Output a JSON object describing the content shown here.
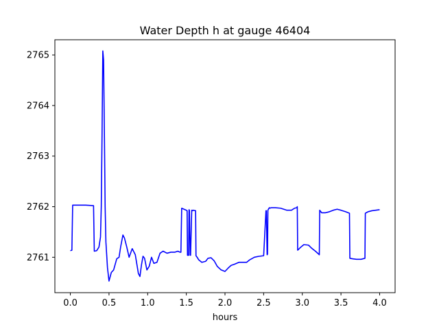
{
  "chart_data": {
    "type": "line",
    "title": "Water Depth h at gauge 46404",
    "xlabel": "hours",
    "ylabel": "",
    "xlim": [
      -0.2,
      4.2
    ],
    "ylim": [
      2760.3,
      2765.3
    ],
    "xticks": [
      0.0,
      0.5,
      1.0,
      1.5,
      2.0,
      2.5,
      3.0,
      3.5,
      4.0
    ],
    "xtick_labels": [
      "0.0",
      "0.5",
      "1.0",
      "1.5",
      "2.0",
      "2.5",
      "3.0",
      "3.5",
      "4.0"
    ],
    "yticks": [
      2761,
      2762,
      2763,
      2764,
      2765
    ],
    "ytick_labels": [
      "2761",
      "2762",
      "2763",
      "2764",
      "2765"
    ],
    "grid": false,
    "series": [
      {
        "color": "#0000ff",
        "x": [
          0.0,
          0.02,
          0.03,
          0.1,
          0.2,
          0.3,
          0.31,
          0.34,
          0.37,
          0.39,
          0.4,
          0.41,
          0.42,
          0.43,
          0.44,
          0.45,
          0.46,
          0.48,
          0.5,
          0.53,
          0.56,
          0.6,
          0.63,
          0.65,
          0.68,
          0.7,
          0.73,
          0.76,
          0.8,
          0.84,
          0.88,
          0.9,
          0.92,
          0.94,
          0.96,
          0.99,
          1.02,
          1.05,
          1.08,
          1.12,
          1.16,
          1.2,
          1.25,
          1.3,
          1.35,
          1.39,
          1.42,
          1.43,
          1.44,
          1.5,
          1.51,
          1.515,
          1.53,
          1.535,
          1.54,
          1.55,
          1.555,
          1.57,
          1.58,
          1.585,
          1.62,
          1.625,
          1.64,
          1.66,
          1.7,
          1.75,
          1.78,
          1.82,
          1.86,
          1.9,
          1.95,
          2.0,
          2.05,
          2.08,
          2.12,
          2.18,
          2.22,
          2.28,
          2.32,
          2.38,
          2.44,
          2.5,
          2.53,
          2.535,
          2.545,
          2.55,
          2.555,
          2.565,
          2.575,
          2.58,
          2.6,
          2.65,
          2.72,
          2.8,
          2.86,
          2.9,
          2.93,
          2.935,
          2.94,
          2.98,
          3.02,
          3.08,
          3.12,
          3.17,
          3.22,
          3.225,
          3.25,
          3.3,
          3.35,
          3.4,
          3.45,
          3.5,
          3.56,
          3.61,
          3.615,
          3.65,
          3.7,
          3.76,
          3.81,
          3.815,
          3.85,
          3.9,
          3.95,
          4.0
        ],
        "y": [
          2761.13,
          2761.14,
          2762.03,
          2762.03,
          2762.03,
          2762.02,
          2761.12,
          2761.13,
          2761.2,
          2761.4,
          2762.0,
          2763.4,
          2765.08,
          2764.9,
          2763.5,
          2762.0,
          2761.3,
          2760.8,
          2760.53,
          2760.7,
          2760.75,
          2760.97,
          2761.0,
          2761.2,
          2761.44,
          2761.38,
          2761.2,
          2761.0,
          2761.17,
          2761.05,
          2760.68,
          2760.62,
          2760.85,
          2761.02,
          2760.98,
          2760.75,
          2760.82,
          2761.0,
          2760.88,
          2760.9,
          2761.08,
          2761.12,
          2761.08,
          2761.1,
          2761.1,
          2761.12,
          2761.1,
          2761.1,
          2761.97,
          2761.93,
          2761.92,
          2761.04,
          2761.04,
          2761.94,
          2761.93,
          2761.04,
          2761.04,
          2761.93,
          2761.92,
          2761.93,
          2761.92,
          2761.03,
          2761.0,
          2760.95,
          2760.9,
          2760.92,
          2760.98,
          2760.99,
          2760.93,
          2760.82,
          2760.75,
          2760.72,
          2760.8,
          2760.84,
          2760.86,
          2760.9,
          2760.9,
          2760.9,
          2760.95,
          2761.0,
          2761.02,
          2761.03,
          2761.92,
          2761.92,
          2761.05,
          2761.06,
          2761.93,
          2761.96,
          2761.98,
          2761.97,
          2761.98,
          2761.98,
          2761.97,
          2761.93,
          2761.93,
          2761.97,
          2761.98,
          2762.0,
          2761.14,
          2761.2,
          2761.25,
          2761.24,
          2761.18,
          2761.12,
          2761.05,
          2761.93,
          2761.88,
          2761.88,
          2761.9,
          2761.93,
          2761.95,
          2761.93,
          2761.9,
          2761.87,
          2760.98,
          2760.97,
          2760.96,
          2760.96,
          2760.98,
          2761.87,
          2761.9,
          2761.92,
          2761.93,
          2761.94
        ]
      }
    ]
  }
}
